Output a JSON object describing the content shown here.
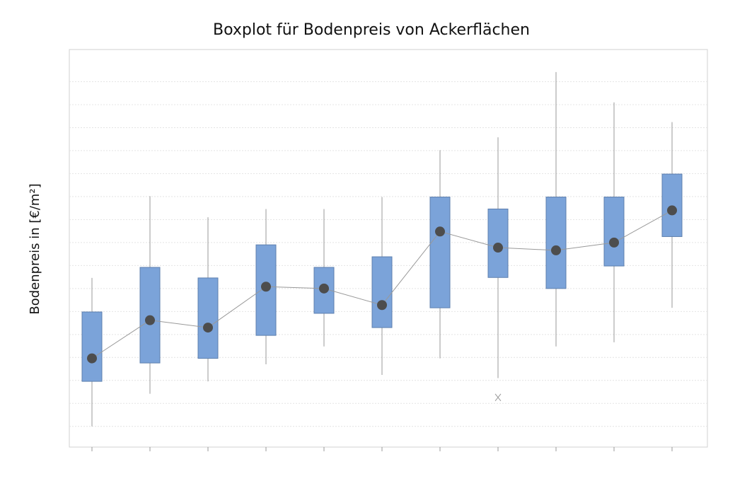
{
  "chart_data": {
    "type": "box",
    "title": "Boxplot für Bodenpreis von Ackerflächen",
    "y_label": "Bodenpreis in [€/m²]",
    "categories": [
      null,
      null,
      null,
      null,
      null,
      null,
      null,
      null,
      null,
      null,
      null
    ],
    "boxes": [
      {
        "min": 0,
        "q1": 0.98,
        "q3": 2.49,
        "max": 3.23,
        "mean": 1.48
      },
      {
        "min": 0.71,
        "q1": 1.38,
        "q3": 3.46,
        "max": 5.01,
        "mean": 2.31
      },
      {
        "min": 0.98,
        "q1": 1.48,
        "q3": 3.23,
        "max": 4.55,
        "mean": 2.15
      },
      {
        "min": 1.35,
        "q1": 1.98,
        "q3": 3.95,
        "max": 4.73,
        "mean": 3.04
      },
      {
        "min": 1.74,
        "q1": 2.46,
        "q3": 3.46,
        "max": 4.73,
        "mean": 3.0
      },
      {
        "min": 1.12,
        "q1": 2.15,
        "q3": 3.69,
        "max": 4.99,
        "mean": 2.64
      },
      {
        "min": 1.48,
        "q1": 2.58,
        "q3": 4.99,
        "max": 6.01,
        "mean": 4.24
      },
      {
        "min": 1.05,
        "q1": 3.24,
        "q3": 4.73,
        "max": 6.29,
        "mean": 3.89,
        "outliers": [
          0.63
        ]
      },
      {
        "min": 1.74,
        "q1": 3.0,
        "q3": 4.99,
        "max": 7.71,
        "mean": 3.83
      },
      {
        "min": 1.83,
        "q1": 3.49,
        "q3": 4.99,
        "max": 7.05,
        "mean": 4.0
      },
      {
        "min": 2.58,
        "q1": 4.13,
        "q3": 5.49,
        "max": 6.62,
        "mean": 4.7
      }
    ],
    "color": "#7ba3d9",
    "mean_color": "#4d4d4d",
    "ylim": [
      -0.45,
      8.2
    ],
    "yticks": [
      0,
      0.5,
      1,
      1.5,
      2,
      2.5,
      3,
      3.5,
      4,
      4.5,
      5,
      5.5,
      6,
      6.5,
      7,
      7.5
    ],
    "grid": true
  }
}
